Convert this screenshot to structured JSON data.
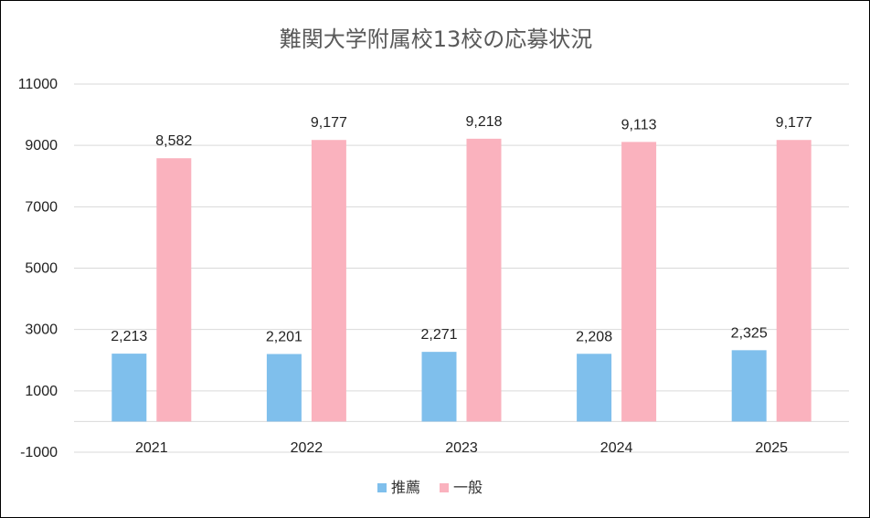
{
  "chart_data": {
    "type": "bar",
    "title": "難関大学附属校13校の応募状況",
    "categories": [
      "2021",
      "2022",
      "2023",
      "2024",
      "2025"
    ],
    "series": [
      {
        "name": "推薦",
        "values": [
          2213,
          2201,
          2271,
          2208,
          2325
        ],
        "labels": [
          "2,213",
          "2,201",
          "2,271",
          "2,208",
          "2,325"
        ],
        "color": "#7fbfec"
      },
      {
        "name": "一般",
        "values": [
          8582,
          9177,
          9218,
          9113,
          9177
        ],
        "labels": [
          "8,582",
          "9,177",
          "9,218",
          "9,113",
          "9,177"
        ],
        "color": "#fab2be"
      }
    ],
    "yticks": [
      "11000",
      "9000",
      "7000",
      "5000",
      "3000",
      "1000",
      "-1000"
    ],
    "ytick_values": [
      11000,
      9000,
      7000,
      5000,
      3000,
      1000,
      -1000
    ],
    "ylim": [
      -1000,
      11000
    ],
    "baseline": 0,
    "grid": true,
    "legend_position": "bottom",
    "xlabel": "",
    "ylabel": ""
  }
}
